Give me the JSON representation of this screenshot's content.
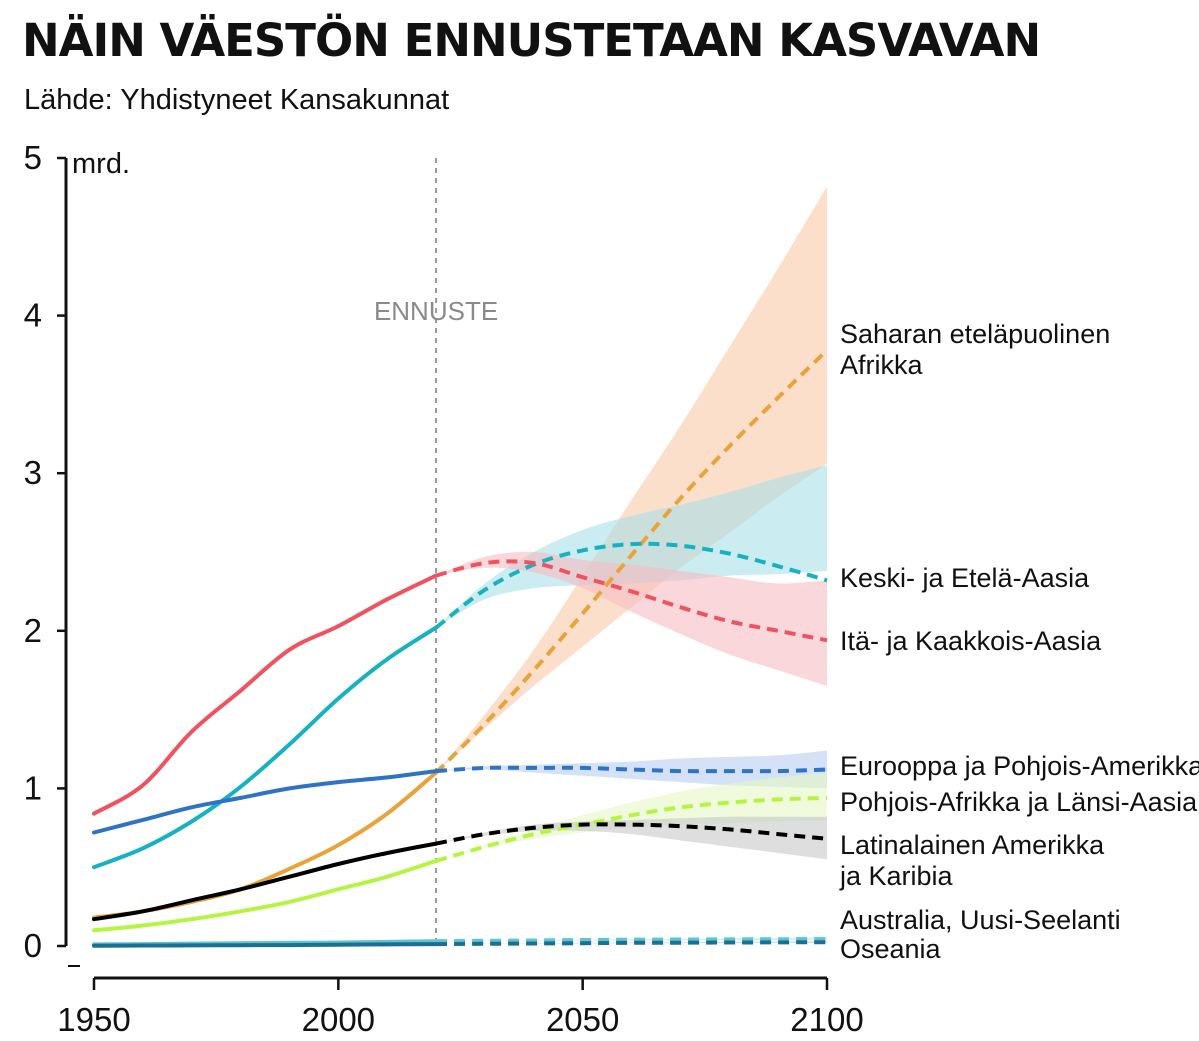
{
  "header": {
    "title": "NÄIN VÄESTÖN ENNUSTETAAN KASVAVAN",
    "subtitle": "Lähde: Yhdistyneet Kansakunnat"
  },
  "chart_data": {
    "type": "line",
    "unit_label": "mrd.",
    "forecast_label": "ENNUSTE",
    "forecast_start": 2020,
    "xlim": [
      1950,
      2100
    ],
    "ylim": [
      0,
      5
    ],
    "x_ticks": [
      1950,
      2000,
      2050,
      2100
    ],
    "y_ticks": [
      0,
      1,
      2,
      3,
      4,
      5
    ],
    "grid": false,
    "series": [
      {
        "name": "Saharan eteläpuolinen Afrikka",
        "label_lines": [
          "Saharan eteläpuolinen",
          "Afrikka"
        ],
        "color": "#e8a33a",
        "band_color": "#fac9a6",
        "x": [
          1950,
          1960,
          1970,
          1980,
          1990,
          2000,
          2010,
          2020,
          2030,
          2040,
          2050,
          2060,
          2070,
          2080,
          2090,
          2100
        ],
        "y": [
          0.18,
          0.22,
          0.28,
          0.36,
          0.49,
          0.64,
          0.84,
          1.1,
          1.41,
          1.75,
          2.11,
          2.48,
          2.84,
          3.17,
          3.48,
          3.78
        ],
        "band_x": [
          2020,
          2030,
          2040,
          2050,
          2060,
          2070,
          2080,
          2090,
          2100
        ],
        "band_low": [
          1.1,
          1.38,
          1.65,
          1.9,
          2.15,
          2.4,
          2.62,
          2.85,
          3.06
        ],
        "band_high": [
          1.1,
          1.47,
          1.88,
          2.35,
          2.83,
          3.3,
          3.8,
          4.3,
          4.82
        ]
      },
      {
        "name": "Keski- ja Etelä-Aasia",
        "label_lines": [
          "Keski- ja Etelä-Aasia"
        ],
        "color": "#17b1c4",
        "band_color": "#a9dfe8",
        "x": [
          1950,
          1960,
          1970,
          1980,
          1990,
          2000,
          2010,
          2020,
          2030,
          2040,
          2050,
          2060,
          2070,
          2080,
          2090,
          2100
        ],
        "y": [
          0.5,
          0.62,
          0.79,
          1.01,
          1.28,
          1.57,
          1.82,
          2.02,
          2.26,
          2.42,
          2.51,
          2.55,
          2.54,
          2.49,
          2.41,
          2.32
        ],
        "band_x": [
          2020,
          2030,
          2040,
          2050,
          2060,
          2070,
          2080,
          2090,
          2100
        ],
        "band_low": [
          2.02,
          2.2,
          2.27,
          2.29,
          2.3,
          2.32,
          2.35,
          2.36,
          2.38
        ],
        "band_high": [
          2.02,
          2.3,
          2.5,
          2.64,
          2.73,
          2.8,
          2.88,
          2.97,
          3.05
        ]
      },
      {
        "name": "Itä- ja Kaakkois-Aasia",
        "label_lines": [
          "Itä- ja Kaakkois-Aasia"
        ],
        "color": "#f0525f",
        "band_color": "#f7bcc3",
        "x": [
          1950,
          1960,
          1970,
          1980,
          1990,
          2000,
          2010,
          2020,
          2030,
          2040,
          2050,
          2060,
          2070,
          2080,
          2090,
          2100
        ],
        "y": [
          0.84,
          1.02,
          1.36,
          1.62,
          1.88,
          2.03,
          2.2,
          2.35,
          2.43,
          2.43,
          2.34,
          2.25,
          2.15,
          2.06,
          2.0,
          1.94
        ],
        "band_x": [
          2020,
          2030,
          2040,
          2050,
          2060,
          2070,
          2080,
          2090,
          2100
        ],
        "band_low": [
          2.35,
          2.4,
          2.37,
          2.27,
          2.12,
          1.98,
          1.85,
          1.75,
          1.65
        ],
        "band_high": [
          2.35,
          2.47,
          2.5,
          2.45,
          2.42,
          2.38,
          2.34,
          2.3,
          2.32
        ]
      },
      {
        "name": "Eurooppa ja Pohjois-Amerikka",
        "label_lines": [
          "Eurooppa ja Pohjois-Amerikka"
        ],
        "color": "#2f73c6",
        "band_color": "#b7cdf0",
        "x": [
          1950,
          1960,
          1970,
          1980,
          1990,
          2000,
          2010,
          2020,
          2030,
          2040,
          2050,
          2060,
          2070,
          2080,
          2090,
          2100
        ],
        "y": [
          0.72,
          0.8,
          0.88,
          0.94,
          1.0,
          1.04,
          1.07,
          1.11,
          1.13,
          1.13,
          1.13,
          1.12,
          1.11,
          1.11,
          1.11,
          1.12
        ],
        "band_x": [
          2020,
          2030,
          2040,
          2050,
          2060,
          2070,
          2080,
          2090,
          2100
        ],
        "band_low": [
          1.11,
          1.12,
          1.1,
          1.08,
          1.06,
          1.04,
          1.02,
          1.01,
          1.0
        ],
        "band_high": [
          1.11,
          1.14,
          1.15,
          1.16,
          1.17,
          1.19,
          1.2,
          1.21,
          1.24
        ]
      },
      {
        "name": "Pohjois-Afrikka ja Länsi-Aasia",
        "label_lines": [
          "Pohjois-Afrikka ja Länsi-Aasia"
        ],
        "color": "#b5f541",
        "band_color": "#e4f9c4",
        "x": [
          1950,
          1960,
          1970,
          1980,
          1990,
          2000,
          2010,
          2020,
          2030,
          2040,
          2050,
          2060,
          2070,
          2080,
          2090,
          2100
        ],
        "y": [
          0.1,
          0.13,
          0.17,
          0.22,
          0.28,
          0.36,
          0.44,
          0.54,
          0.63,
          0.71,
          0.77,
          0.83,
          0.88,
          0.91,
          0.93,
          0.94
        ],
        "band_x": [
          2020,
          2030,
          2040,
          2050,
          2060,
          2070,
          2080,
          2090,
          2100
        ],
        "band_low": [
          0.54,
          0.62,
          0.68,
          0.72,
          0.75,
          0.77,
          0.78,
          0.79,
          0.8
        ],
        "band_high": [
          0.54,
          0.64,
          0.74,
          0.83,
          0.91,
          0.98,
          1.03,
          1.07,
          1.1
        ]
      },
      {
        "name": "Latinalainen Amerikka ja Karibia",
        "label_lines": [
          "Latinalainen Amerikka",
          "ja Karibia"
        ],
        "color": "#000000",
        "band_color": "#c8c8c8",
        "x": [
          1950,
          1960,
          1970,
          1980,
          1990,
          2000,
          2010,
          2020,
          2030,
          2040,
          2050,
          2060,
          2070,
          2080,
          2090,
          2100
        ],
        "y": [
          0.17,
          0.22,
          0.29,
          0.36,
          0.44,
          0.52,
          0.59,
          0.65,
          0.71,
          0.75,
          0.77,
          0.77,
          0.76,
          0.74,
          0.71,
          0.68
        ],
        "band_x": [
          2020,
          2030,
          2040,
          2050,
          2060,
          2070,
          2080,
          2090,
          2100
        ],
        "band_low": [
          0.65,
          0.7,
          0.73,
          0.73,
          0.71,
          0.67,
          0.63,
          0.59,
          0.55
        ],
        "band_high": [
          0.65,
          0.72,
          0.77,
          0.79,
          0.8,
          0.81,
          0.82,
          0.82,
          0.82
        ]
      },
      {
        "name": "Australia, Uusi-Seelanti",
        "label_lines": [
          "Australia, Uusi-Seelanti"
        ],
        "color": "#5bc4d8",
        "band_color": "#bfe8f0",
        "x": [
          1950,
          1960,
          1970,
          1980,
          1990,
          2000,
          2010,
          2020,
          2030,
          2040,
          2050,
          2060,
          2070,
          2080,
          2090,
          2100
        ],
        "y": [
          0.01,
          0.012,
          0.015,
          0.017,
          0.02,
          0.022,
          0.026,
          0.03,
          0.033,
          0.035,
          0.038,
          0.04,
          0.041,
          0.042,
          0.043,
          0.044
        ],
        "band_x": [
          2020,
          2030,
          2040,
          2050,
          2060,
          2070,
          2080,
          2090,
          2100
        ],
        "band_low": [
          0.03,
          0.032,
          0.033,
          0.034,
          0.035,
          0.035,
          0.036,
          0.036,
          0.036
        ],
        "band_high": [
          0.03,
          0.034,
          0.037,
          0.041,
          0.044,
          0.047,
          0.05,
          0.053,
          0.056
        ]
      },
      {
        "name": "Oseania",
        "label_lines": [
          "Oseania"
        ],
        "color": "#1c6f8f",
        "band_color": "#a8cbd9",
        "x": [
          1950,
          1960,
          1970,
          1980,
          1990,
          2000,
          2010,
          2020,
          2030,
          2040,
          2050,
          2060,
          2070,
          2080,
          2090,
          2100
        ],
        "y": [
          0.002,
          0.003,
          0.004,
          0.005,
          0.006,
          0.008,
          0.01,
          0.012,
          0.014,
          0.016,
          0.018,
          0.02,
          0.021,
          0.022,
          0.023,
          0.024
        ],
        "band_x": [
          2020,
          2030,
          2040,
          2050,
          2060,
          2070,
          2080,
          2090,
          2100
        ],
        "band_low": [
          0.012,
          0.013,
          0.015,
          0.016,
          0.017,
          0.018,
          0.018,
          0.019,
          0.019
        ],
        "band_high": [
          0.012,
          0.015,
          0.017,
          0.02,
          0.022,
          0.024,
          0.026,
          0.028,
          0.03
        ]
      }
    ]
  }
}
